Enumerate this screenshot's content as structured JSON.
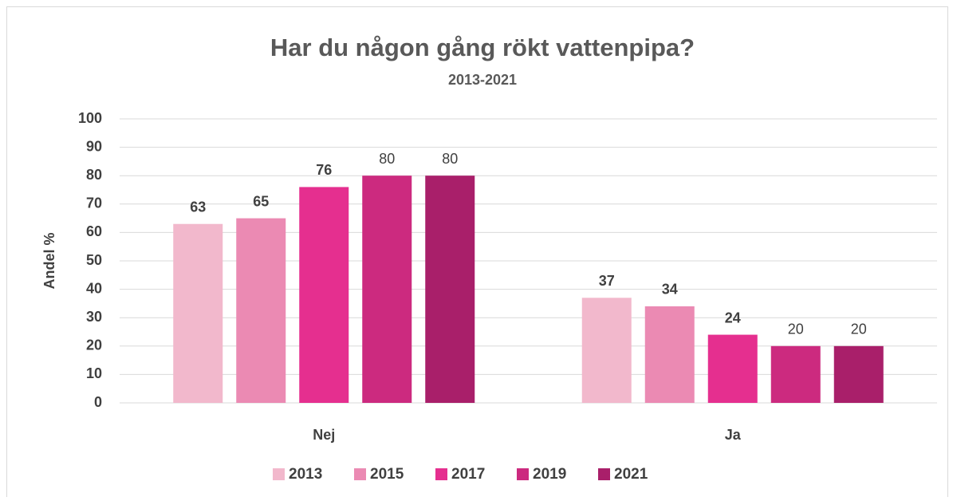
{
  "chart_data": {
    "type": "bar",
    "title": "Har du någon gång rökt vattenpipa?",
    "subtitle": "2013-2021",
    "y_label": "Andel %",
    "categories": [
      "Nej",
      "Ja"
    ],
    "series": [
      {
        "name": "2013",
        "color": "#f2b8cc",
        "label_bold": true,
        "values": [
          63,
          37
        ]
      },
      {
        "name": "2015",
        "color": "#eb8ab3",
        "label_bold": true,
        "values": [
          65,
          34
        ]
      },
      {
        "name": "2017",
        "color": "#e52f8f",
        "label_bold": true,
        "values": [
          76,
          24
        ]
      },
      {
        "name": "2019",
        "color": "#cc2a7f",
        "label_bold": false,
        "values": [
          80,
          20
        ]
      },
      {
        "name": "2021",
        "color": "#a91f6a",
        "label_bold": false,
        "values": [
          80,
          20
        ]
      }
    ],
    "ylim": [
      0,
      100
    ],
    "yticks": [
      0,
      10,
      20,
      30,
      40,
      50,
      60,
      70,
      80,
      90,
      100
    ],
    "grid": true,
    "legend": "bottom"
  }
}
